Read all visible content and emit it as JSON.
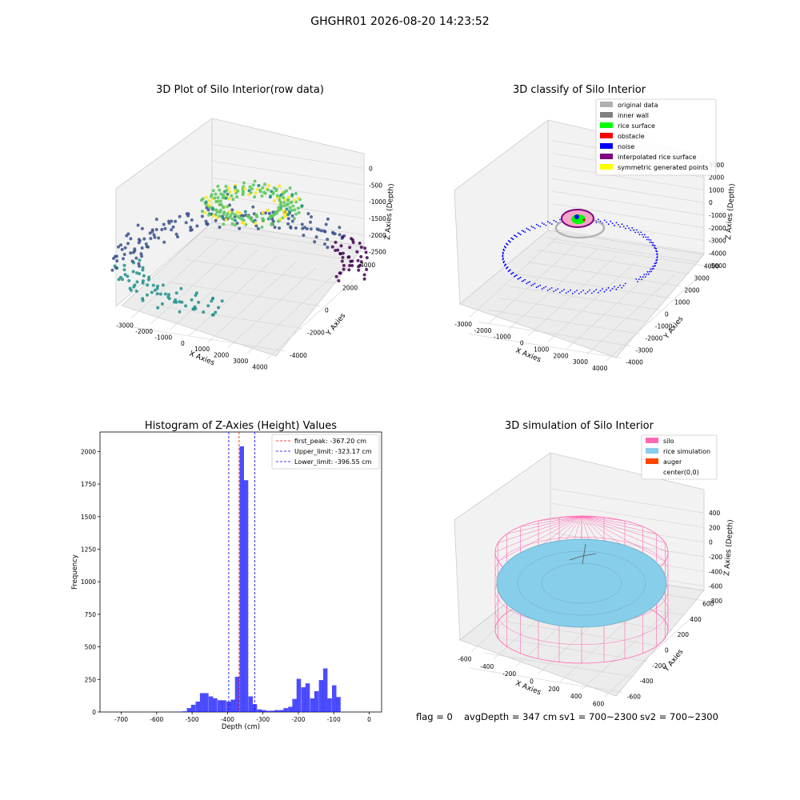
{
  "suptitle": "GHGHR01 2026-08-20 14:23:52",
  "footer": {
    "flag": "flag = 0",
    "avg": "avgDepth = 347 cm",
    "sv1": "sv1 = 700~2300",
    "sv2": "sv2 = 700~2300"
  },
  "chart_data": [
    {
      "type": "scatter",
      "title": "3D Plot of Silo Interior(row data)",
      "xlabel": "X Axies",
      "ylabel": "Y Axies",
      "zlabel": "Z Axies (Depth)",
      "x_ticks": [
        "-3000",
        "-2000",
        "-1000",
        "0",
        "1000",
        "2000",
        "3000",
        "4000"
      ],
      "y_ticks": [
        "-4000",
        "-2000",
        "0",
        "2000",
        "4000"
      ],
      "z_ticks": [
        "0",
        "-500",
        "-1000",
        "-1500",
        "-2000",
        "-2500"
      ],
      "colormap": [
        "#440154",
        "#3b528b",
        "#21918c",
        "#5ec962",
        "#fde725"
      ]
    },
    {
      "type": "scatter",
      "title": "3D classify of Silo Interior",
      "xlabel": "X Axies",
      "ylabel": "Y Axies",
      "zlabel": "Z Axies (Depth)",
      "x_ticks": [
        "-3000",
        "-2000",
        "-1000",
        "0",
        "1000",
        "2000",
        "3000",
        "4000"
      ],
      "y_ticks": [
        "-4000",
        "-3000",
        "-2000",
        "-1000",
        "0",
        "1000",
        "2000",
        "3000",
        "4000"
      ],
      "z_ticks": [
        "3000",
        "2000",
        "1000",
        "0",
        "-1000",
        "-2000",
        "-3000",
        "-4000",
        "-5000"
      ],
      "legend": [
        {
          "label": "original data",
          "color": "#b0b0b0"
        },
        {
          "label": "inner wall",
          "color": "#808080"
        },
        {
          "label": "rice surface",
          "color": "#00ff00"
        },
        {
          "label": "obstacle",
          "color": "#ff0000"
        },
        {
          "label": "noise",
          "color": "#0000ff"
        },
        {
          "label": "interpolated rice surface",
          "color": "#800080"
        },
        {
          "label": "symmetric generated points",
          "color": "#ffff00"
        }
      ]
    },
    {
      "type": "bar",
      "title": "Histogram of Z-Axies (Height) Values",
      "xlabel": "Depth (cm)",
      "ylabel": "Frequency",
      "xlim": [
        -760,
        35
      ],
      "ylim": [
        0,
        2150
      ],
      "x_ticks": [
        -700,
        -600,
        -500,
        -400,
        -300,
        -200,
        -100,
        0
      ],
      "y_ticks": [
        0,
        250,
        500,
        750,
        1000,
        1250,
        1500,
        1750,
        2000
      ],
      "bin_width": 12.4,
      "bin_starts": [
        -553,
        -540,
        -528,
        -515,
        -503,
        -490,
        -478,
        -466,
        -453,
        -441,
        -428,
        -416,
        -403,
        -391,
        -379,
        -366,
        -354,
        -341,
        -329,
        -316,
        -304,
        -292,
        -279,
        -267,
        -254,
        -242,
        -229,
        -217,
        -205,
        -192,
        -180,
        -167,
        -155,
        -142,
        -130,
        -118,
        -105,
        -93,
        -80,
        -68,
        -55,
        -43,
        -31,
        -18,
        -6
      ],
      "values": [
        2,
        3,
        5,
        30,
        55,
        80,
        145,
        145,
        120,
        105,
        90,
        90,
        80,
        95,
        270,
        2040,
        1780,
        120,
        60,
        20,
        15,
        10,
        10,
        15,
        15,
        30,
        40,
        100,
        255,
        190,
        220,
        105,
        160,
        245,
        335,
        105,
        205,
        115,
        0,
        0,
        0,
        0,
        0,
        0,
        0
      ],
      "bar_color": "#0000ff",
      "bar_opacity": 0.7,
      "lines": [
        {
          "label": "first_peak: -367.20 cm",
          "value": -367.2,
          "color": "#ff0000"
        },
        {
          "label": "Upper_limit: -323.17 cm",
          "value": -323.17,
          "color": "#0000ff"
        },
        {
          "label": "Lower_limit: -396.55 cm",
          "value": -396.55,
          "color": "#0000ff"
        }
      ]
    },
    {
      "type": "scatter",
      "title": "3D simulation of Silo Interior",
      "xlabel": "X Axies",
      "ylabel": "Y Axies",
      "zlabel": "Z Axies (Depth)",
      "x_ticks": [
        "-600",
        "-400",
        "-200",
        "0",
        "200",
        "400",
        "600"
      ],
      "y_ticks": [
        "-600",
        "-400",
        "-200",
        "0",
        "200",
        "400",
        "600"
      ],
      "z_ticks": [
        "400",
        "200",
        "0",
        "-200",
        "-400",
        "-600",
        "-800"
      ],
      "legend": [
        {
          "label": "silo",
          "color": "#ff69b4"
        },
        {
          "label": "rice simulation",
          "color": "#87ceeb"
        },
        {
          "label": "auger",
          "color": "#ff4500"
        },
        {
          "label": "center(0,0)",
          "color": "#ffffff"
        }
      ]
    }
  ]
}
